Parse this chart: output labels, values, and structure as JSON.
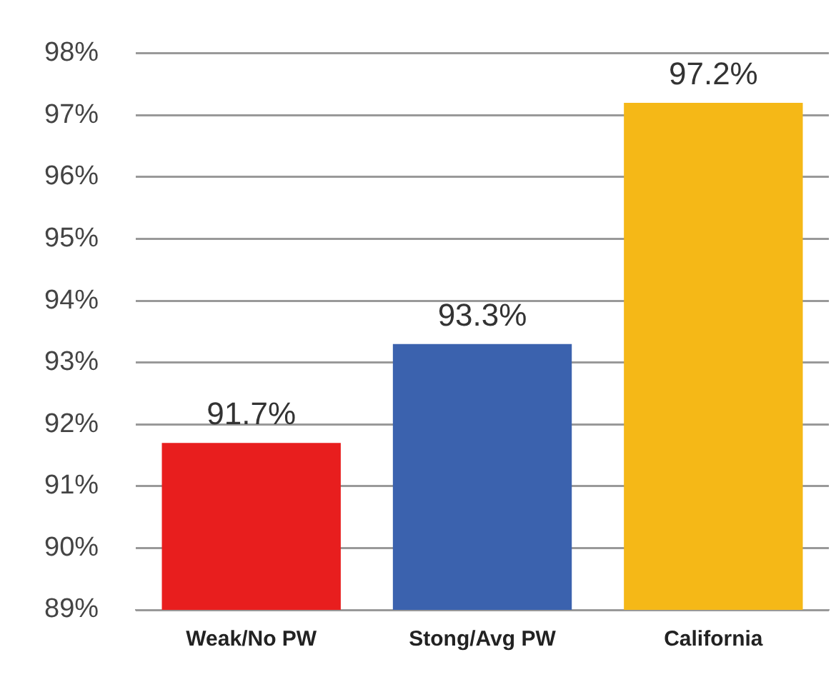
{
  "chart_data": {
    "type": "bar",
    "categories": [
      "Weak/No PW",
      "Stong/Avg PW",
      "California"
    ],
    "values": [
      91.7,
      93.3,
      97.2
    ],
    "colors": [
      "#e81e1e",
      "#3b62ae",
      "#f5b817"
    ],
    "value_labels": [
      "91.7%",
      "93.3%",
      "97.2%"
    ],
    "ylim": [
      89,
      98
    ],
    "yticks": [
      {
        "value": 89,
        "label": "89%"
      },
      {
        "value": 90,
        "label": "90%"
      },
      {
        "value": 91,
        "label": "91%"
      },
      {
        "value": 92,
        "label": "92%"
      },
      {
        "value": 93,
        "label": "93%"
      },
      {
        "value": 94,
        "label": "94%"
      },
      {
        "value": 95,
        "label": "95%"
      },
      {
        "value": 96,
        "label": "96%"
      },
      {
        "value": 97,
        "label": "97%"
      },
      {
        "value": 98,
        "label": "98%"
      }
    ],
    "grid": "y",
    "legend": false
  }
}
